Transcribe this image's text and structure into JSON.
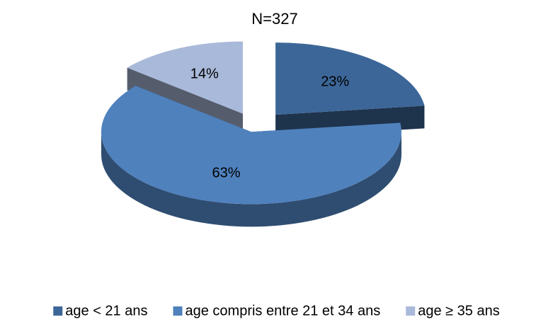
{
  "chart_data": {
    "type": "pie",
    "title": "N=327",
    "categories": [
      "age < 21 ans",
      "age compris entre 21 et 34 ans",
      "age ≥ 35 ans"
    ],
    "values": [
      23,
      63,
      14
    ],
    "value_labels": [
      "23%",
      "63%",
      "14%"
    ],
    "colors": [
      "#3c6698",
      "#4f81bd",
      "#a9b9d9"
    ],
    "legend": "bottom"
  }
}
